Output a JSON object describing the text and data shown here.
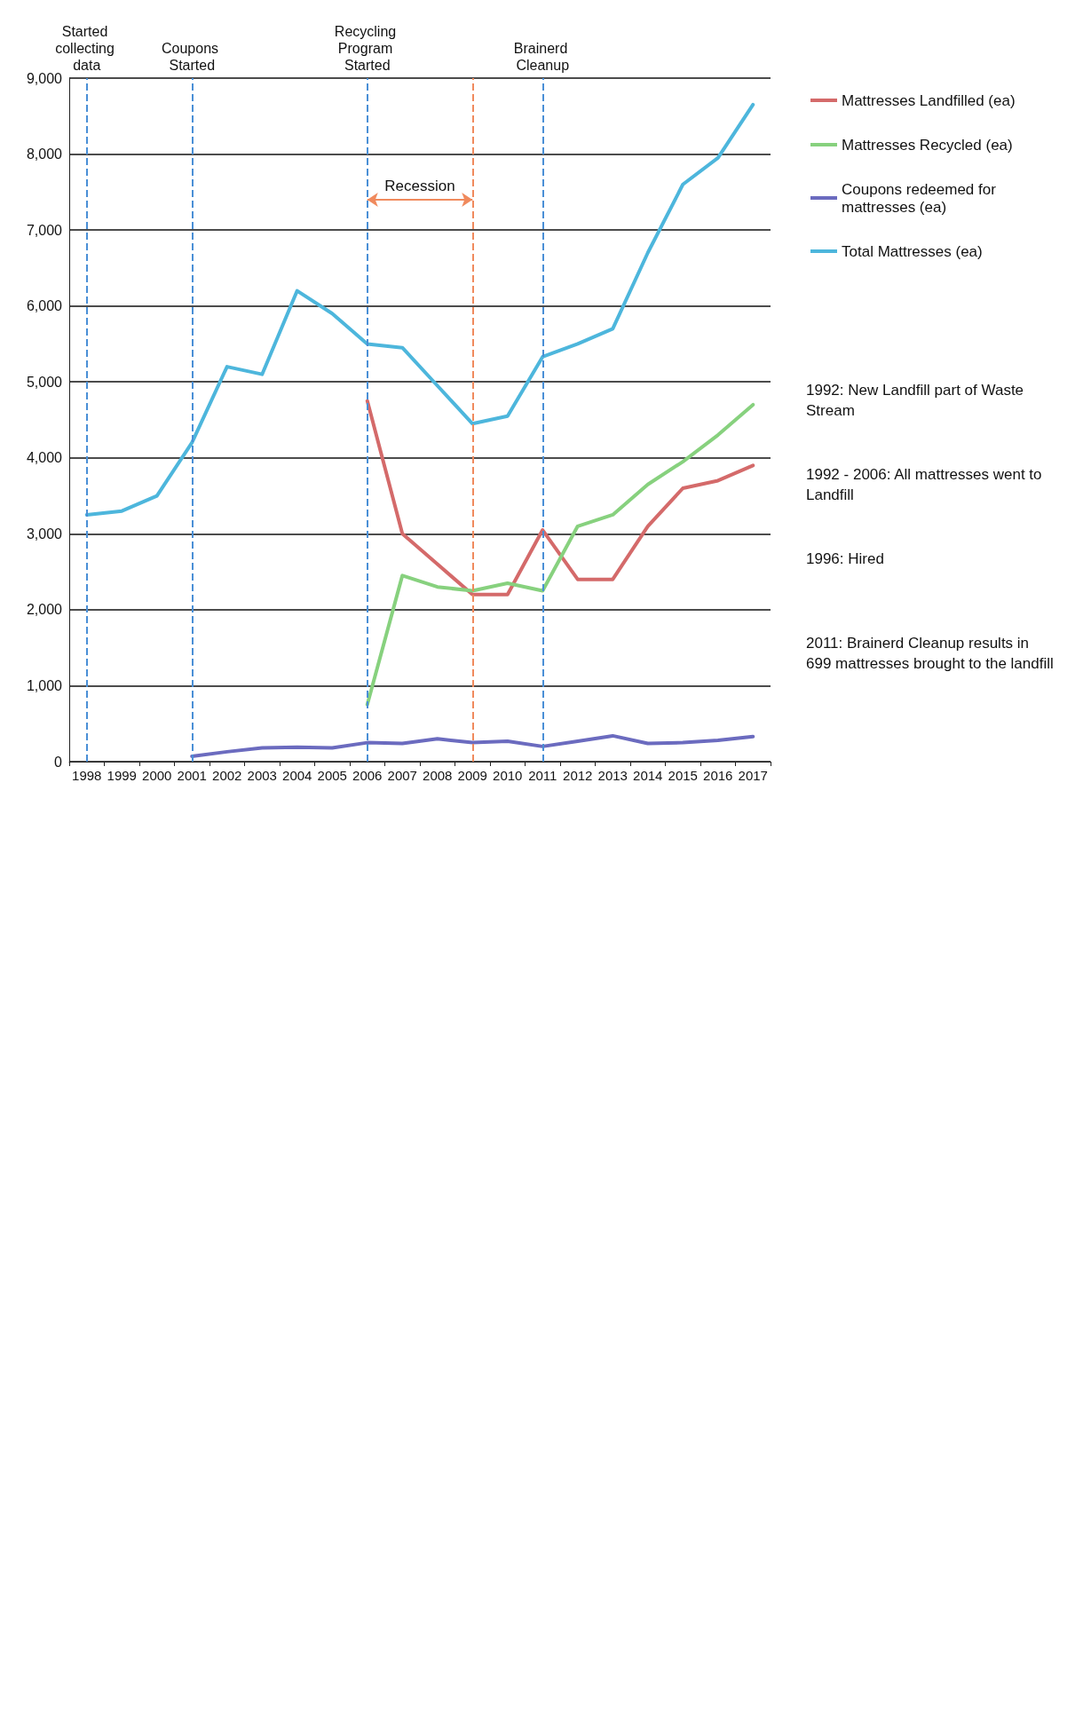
{
  "chart_data": {
    "type": "line",
    "categories": [
      "1998",
      "1999",
      "2000",
      "2001",
      "2002",
      "2003",
      "2004",
      "2005",
      "2006",
      "2007",
      "2008",
      "2009",
      "2010",
      "2011",
      "2012",
      "2013",
      "2014",
      "2015",
      "2016",
      "2017"
    ],
    "series": [
      {
        "name": "Mattresses Landfilled (ea)",
        "color": "#d46a6a",
        "values": [
          null,
          null,
          null,
          null,
          null,
          null,
          null,
          null,
          4750,
          3000,
          2600,
          2200,
          2200,
          3050,
          2400,
          2400,
          3100,
          3600,
          3700,
          3900
        ]
      },
      {
        "name": "Mattresses Recycled (ea)",
        "color": "#87d17e",
        "values": [
          null,
          null,
          null,
          null,
          null,
          null,
          null,
          null,
          750,
          2450,
          2300,
          2250,
          2350,
          2250,
          3100,
          3250,
          3650,
          3950,
          4300,
          4700
        ]
      },
      {
        "name": "Coupons redeemed for mattresses (ea)",
        "color": "#6b6bbf",
        "values": [
          null,
          null,
          null,
          70,
          130,
          180,
          190,
          180,
          250,
          240,
          300,
          250,
          270,
          200,
          270,
          340,
          240,
          250,
          280,
          330
        ]
      },
      {
        "name": "Total Mattresses (ea)",
        "color": "#4db6dc",
        "values": [
          3250,
          3300,
          3500,
          4200,
          5200,
          5100,
          6200,
          5900,
          5500,
          5450,
          4950,
          4450,
          4550,
          5330,
          5500,
          5700,
          6700,
          7600,
          7950,
          8650
        ]
      }
    ],
    "ylim": [
      0,
      9000
    ],
    "yticks": [
      {
        "value": 0,
        "label": "0"
      },
      {
        "value": 1000,
        "label": "1,000"
      },
      {
        "value": 2000,
        "label": "2,000"
      },
      {
        "value": 3000,
        "label": "3,000"
      },
      {
        "value": 4000,
        "label": "4,000"
      },
      {
        "value": 5000,
        "label": "5,000"
      },
      {
        "value": 6000,
        "label": "6,000"
      },
      {
        "value": 7000,
        "label": "7,000"
      },
      {
        "value": 8000,
        "label": "8,000"
      },
      {
        "value": 9000,
        "label": "9,000"
      }
    ],
    "grid": "y",
    "legend": "right",
    "marker": "none",
    "ref_lines": [
      {
        "axis": "x",
        "value": "1998",
        "label": "Started collecting data",
        "color": "#4a8fd6",
        "line_style": "dashed"
      },
      {
        "axis": "x",
        "value": "2001",
        "label": "Coupons Started",
        "color": "#4a8fd6",
        "line_style": "dashed"
      },
      {
        "axis": "x",
        "value": "2006",
        "label": "Recycling Program Started",
        "color": "#4a8fd6",
        "line_style": "dashed"
      },
      {
        "axis": "x",
        "value": "2011",
        "label": "Brainerd Cleanup",
        "color": "#4a8fd6",
        "line_style": "dashed"
      },
      {
        "axis": "x",
        "value": "2009",
        "label": null,
        "color": "#f08a5d",
        "line_style": "dashed"
      }
    ],
    "annotations": [
      {
        "text": "Recession",
        "x": "2006",
        "y": 7400
      },
      "1992: New Landfill part of Waste Stream",
      "1992 - 2006: All mattresses went to Landfill",
      "1996: Hired",
      "2011: Brainerd Cleanup results in 699 mattresses brought to the landfill"
    ]
  }
}
